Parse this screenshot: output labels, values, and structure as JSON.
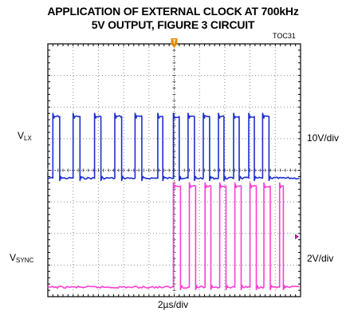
{
  "title_line1": "APPLICATION OF EXTERNAL CLOCK AT 700kHz",
  "title_line2": "5V OUTPUT, FIGURE 3 CIRCUIT",
  "figure_id": "TOC31",
  "trigger_marker": "T",
  "chart_data": {
    "type": "line",
    "grid": true,
    "x_divisions": 10,
    "y_divisions": 8,
    "x_label": "2µs/div",
    "series": [
      {
        "name": "LX",
        "subscript": "LX",
        "prefix": "V",
        "scale_label": "10V/div",
        "color": "#1f2fd0",
        "low_div": 3.75,
        "high_div": 5.7,
        "edges_div": [
          0.2,
          0.47,
          1.0,
          1.27,
          1.85,
          2.1,
          2.65,
          2.92,
          3.45,
          3.72,
          4.35,
          4.55,
          4.97,
          5.2,
          5.55,
          5.8,
          6.15,
          6.4,
          6.75,
          6.97,
          7.35,
          7.57,
          7.95,
          8.17,
          8.5,
          8.75
        ]
      },
      {
        "name": "SYNC",
        "subscript": "SYNC",
        "prefix": "V",
        "scale_label": "2V/div",
        "color": "#ff3ed2",
        "low_div": 0.3,
        "high_div": 3.5,
        "edges_div": [
          4.97,
          5.25,
          5.6,
          5.85,
          6.22,
          6.45,
          6.8,
          7.05,
          7.4,
          7.65,
          8.0,
          8.25,
          8.55,
          8.8,
          9.17,
          9.32
        ]
      }
    ]
  }
}
